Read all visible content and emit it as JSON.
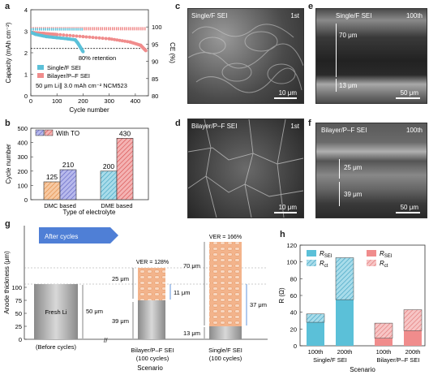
{
  "figure": {
    "panel_a": {
      "label": "a",
      "ylabel_left": "Capacity (mAh cm⁻²)",
      "ylabel_right": "CE (%)",
      "xlabel": "Cycle number",
      "xticks": [
        "0",
        "100",
        "200",
        "300",
        "400"
      ],
      "yticks_left": [
        "0",
        "1",
        "2",
        "3",
        "4"
      ],
      "yticks_right": [
        "80",
        "85",
        "90",
        "95",
        "100"
      ],
      "retention_label": "80% retention",
      "legend": [
        "Single/F SEI",
        "Bilayer/P–F SEI"
      ],
      "cell_info": "50 μm Li∥ 3.0 mAh cm⁻² NCM523"
    },
    "panel_b": {
      "label": "b",
      "ylabel": "Cycle number",
      "xlabel": "Type of electrolyte",
      "legend_with_to": "With TO",
      "groups": [
        "DMC based",
        "DME based"
      ],
      "values": [
        "125",
        "210",
        "200",
        "430"
      ],
      "yticks": [
        "0",
        "100",
        "200",
        "300",
        "400",
        "500"
      ]
    },
    "panel_c": {
      "label": "c",
      "tag": "Single/F SEI",
      "cycle": "1st",
      "scale": "10 μm"
    },
    "panel_d": {
      "label": "d",
      "tag": "Bilayer/P–F SEI",
      "cycle": "1st",
      "scale": "10 μm"
    },
    "panel_e": {
      "label": "e",
      "tag": "Single/F SEI",
      "cycle": "100th",
      "dim1": "70 μm",
      "dim2": "13 μm",
      "scale": "50 μm"
    },
    "panel_f": {
      "label": "f",
      "tag": "Bilayer/P–F SEI",
      "cycle": "100th",
      "dim1": "25 μm",
      "dim2": "39 μm",
      "scale": "50 μm"
    },
    "panel_g": {
      "label": "g",
      "ylabel": "Anode thickness (μm)",
      "xlabel": "Scenario",
      "arrow_text": "After cycles",
      "yticks": [
        "0",
        "25",
        "50",
        "75",
        "100"
      ],
      "fresh_li": "Fresh Li",
      "fresh_dim": "50 μm",
      "before": "(Before cycles)",
      "ver_bilayer": "VER = 128%",
      "ver_single": "VER = 166%",
      "bilayer_name": "Bilayer/P–F SEI",
      "bilayer_cycles": "(100 cycles)",
      "single_name": "Single/F SEI",
      "single_cycles": "(100 cycles)",
      "dim_25": "25 μm",
      "dim_11": "11 μm",
      "dim_39": "39 μm",
      "dim_70": "70 μm",
      "dim_37": "37 μm",
      "dim_13": "13 μm",
      "break": "//"
    },
    "panel_h": {
      "label": "h",
      "ylabel": "R (Ω)",
      "xlabel": "Scenario",
      "yticks": [
        "0",
        "20",
        "40",
        "60",
        "80",
        "100",
        "120"
      ],
      "legend_blue": [
        "R",
        "SEI",
        "R",
        "ct"
      ],
      "legend_red": [
        "R",
        "SEI",
        "R",
        "ct"
      ],
      "xticks": [
        "100th",
        "200th",
        "100th",
        "200th"
      ],
      "groups": [
        "Single/F SEI",
        "Bilayer/P–F SEI"
      ]
    }
  },
  "colors": {
    "blue": "#5bc0d8",
    "red": "#f08c8c",
    "orange": "#f0a46a",
    "purple": "#6f72c9",
    "darkred": "#d64a4a",
    "arrow": "#4f7fd6"
  },
  "chart_data": [
    {
      "type": "line",
      "title": "",
      "xlabel": "Cycle number",
      "ylabel": "Capacity (mAh cm⁻²)",
      "xlim": [
        0,
        450
      ],
      "ylim": [
        0,
        4
      ],
      "series": [
        {
          "name": "Single/F SEI",
          "x": [
            0,
            20,
            60,
            100,
            140,
            170,
            180,
            190,
            200
          ],
          "y": [
            2.95,
            2.85,
            2.75,
            2.7,
            2.65,
            2.6,
            2.45,
            2.25,
            2.05
          ]
        },
        {
          "name": "Bilayer/P–F SEI",
          "x": [
            0,
            50,
            100,
            200,
            300,
            380,
            420,
            440
          ],
          "y": [
            2.95,
            2.9,
            2.85,
            2.75,
            2.65,
            2.5,
            2.35,
            2.1
          ]
        }
      ],
      "retention_line_y": 2.2
    },
    {
      "type": "bar",
      "title": "",
      "xlabel": "Type of electrolyte",
      "ylabel": "Cycle number",
      "categories": [
        "DMC based",
        "DME based"
      ],
      "series": [
        {
          "name": "",
          "values": [
            125,
            200
          ]
        },
        {
          "name": "With TO",
          "values": [
            210,
            430
          ]
        }
      ],
      "ylim": [
        0,
        500
      ]
    },
    {
      "type": "bar",
      "title": "",
      "xlabel": "Scenario",
      "ylabel": "R (Ω)",
      "categories": [
        "100th",
        "200th",
        "100th",
        "200th"
      ],
      "groups": [
        "Single/F SEI",
        "Bilayer/P–F SEI"
      ],
      "series": [
        {
          "name": "R_SEI",
          "values": [
            28,
            55,
            9,
            18
          ]
        },
        {
          "name": "R_ct",
          "values": [
            10,
            50,
            18,
            25
          ]
        }
      ],
      "ylim": [
        0,
        120
      ]
    }
  ]
}
